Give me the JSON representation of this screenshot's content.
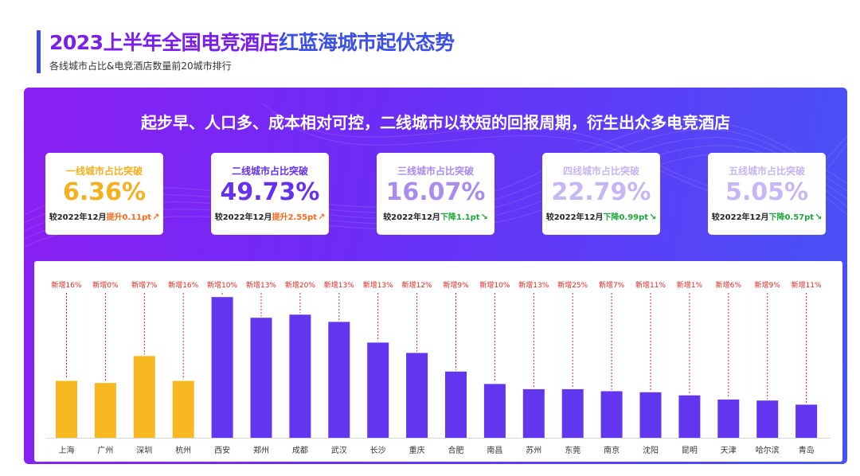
{
  "header": {
    "title_part1": "2023上半年全国电竞酒店",
    "title_part2": "红蓝海城市起伏态势",
    "subtitle": "各线城市占比&电竞酒店数量前20城市排行"
  },
  "panel": {
    "headline": "起步早、人口多、成本相对可控，二线城市以较短的回报周期，衍生出众多电竞酒店"
  },
  "cards": [
    {
      "label": "一线城市占比突破",
      "value": "6.36%",
      "prefix": "较2022年12月",
      "direction": "提升",
      "amount": "0.11pt",
      "arrow": "↗",
      "color": "#f5b020"
    },
    {
      "label": "二线城市占比突破",
      "value": "49.73%",
      "prefix": "较2022年12月",
      "direction": "提升",
      "amount": "2.55pt",
      "arrow": "↗",
      "color": "#6631ee"
    },
    {
      "label": "三线城市占比突破",
      "value": "16.07%",
      "prefix": "较2022年12月",
      "direction": "下降",
      "amount": "1.1pt",
      "arrow": "↘",
      "color": "#a98cf0"
    },
    {
      "label": "四线城市占比突破",
      "value": "22.79%",
      "prefix": "较2022年12月",
      "direction": "下降",
      "amount": "0.99pt",
      "arrow": "↘",
      "color": "#c6b6f4"
    },
    {
      "label": "五线城市占比突破",
      "value": "5.05%",
      "prefix": "较2022年12月",
      "direction": "下降",
      "amount": "0.57pt",
      "arrow": "↘",
      "color": "#c6b6f4"
    }
  ],
  "colors": {
    "tier1_bar": "#f8b822",
    "other_bar": "#6235ee",
    "annotation": "#e0281f",
    "up": "#ff6a1a",
    "down": "#1fa83a"
  },
  "chart_data": {
    "type": "bar",
    "categories": [
      "上海",
      "广州",
      "深圳",
      "杭州",
      "西安",
      "郑州",
      "成都",
      "武汉",
      "长沙",
      "重庆",
      "合肥",
      "南昌",
      "苏州",
      "东莞",
      "南京",
      "沈阳",
      "昆明",
      "天津",
      "哈尔滨",
      "青岛"
    ],
    "values": [
      55,
      53,
      79,
      55,
      136,
      116,
      119,
      112,
      92,
      82,
      64,
      52,
      47,
      47,
      45,
      44,
      41,
      37,
      36,
      32
    ],
    "annotations": [
      "新增16%",
      "新增0%",
      "新增7%",
      "新增16%",
      "新增10%",
      "新增13%",
      "新增20%",
      "新增13%",
      "新增13%",
      "新增12%",
      "新增9%",
      "新增10%",
      "新增13%",
      "新增25%",
      "新增7%",
      "新增11%",
      "新增1%",
      "新增6%",
      "新增9%",
      "新增11%"
    ],
    "tier1_count": 4,
    "ylim": [
      0,
      140
    ],
    "grid": false,
    "axis_labels_shown": false
  }
}
